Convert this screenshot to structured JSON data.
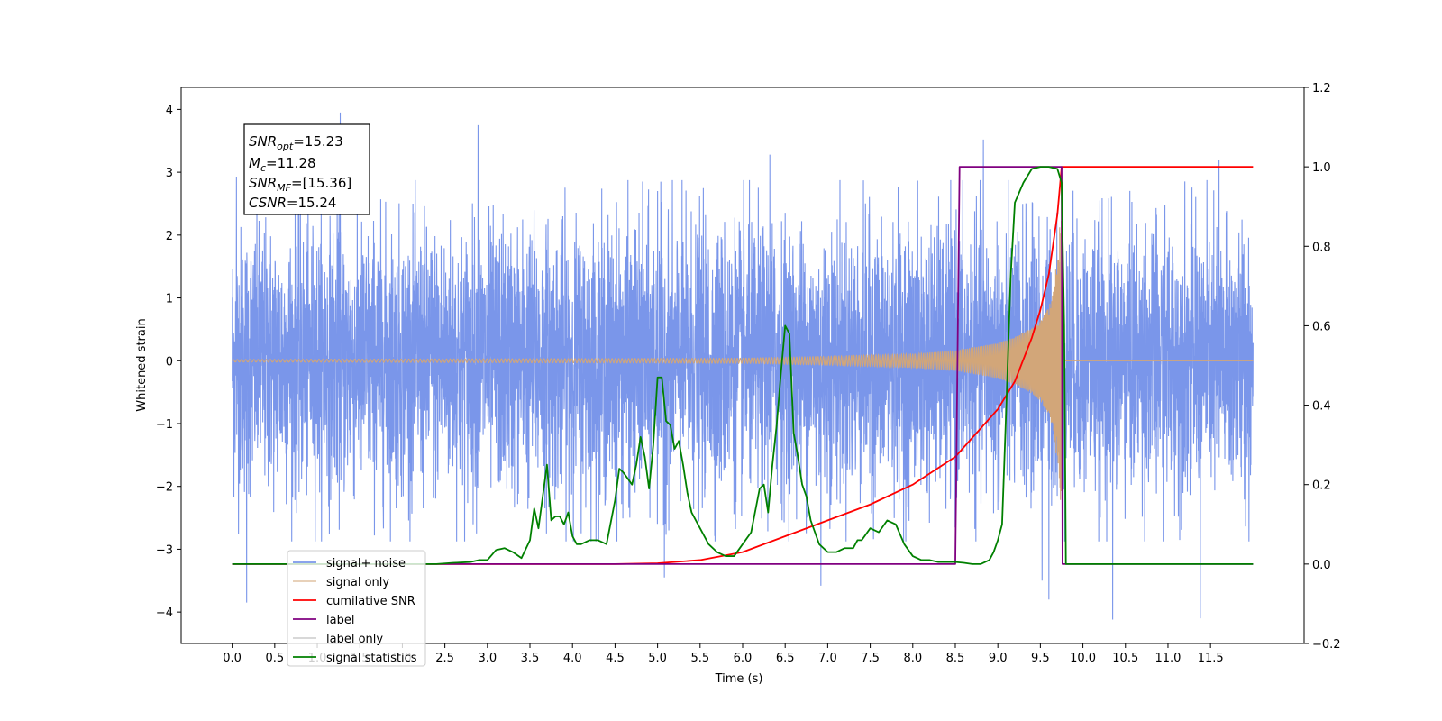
{
  "chart_data": {
    "type": "line",
    "xlabel": "Time (s)",
    "ylabel_left": "Whitened strain",
    "ylabel_right": "",
    "xlim": [
      -0.6,
      12.6
    ],
    "ylim_left": [
      -4.5,
      4.35
    ],
    "ylim_right": [
      -0.2,
      1.2
    ],
    "x_ticks": [
      0.0,
      0.5,
      1.0,
      1.5,
      2.0,
      2.5,
      3.0,
      3.5,
      4.0,
      4.5,
      5.0,
      5.5,
      6.0,
      6.5,
      7.0,
      7.5,
      8.0,
      8.5,
      9.0,
      9.5,
      10.0,
      10.5,
      11.0,
      11.5
    ],
    "x_tick_labels": [
      "0.0",
      "0.5",
      "1.0",
      "1.5",
      "2.0",
      "2.5",
      "3.0",
      "3.5",
      "4.0",
      "4.5",
      "5.0",
      "5.5",
      "6.0",
      "6.5",
      "7.0",
      "7.5",
      "8.0",
      "8.5",
      "9.0",
      "9.5",
      "10.0",
      "10.5",
      "11.0",
      "11.5"
    ],
    "y_left_ticks": [
      -4,
      -3,
      -2,
      -1,
      0,
      1,
      2,
      3,
      4
    ],
    "y_left_tick_labels": [
      "−4",
      "−3",
      "−2",
      "−1",
      "0",
      "1",
      "2",
      "3",
      "4"
    ],
    "y_right_ticks": [
      -0.2,
      0.0,
      0.2,
      0.4,
      0.6,
      0.8,
      1.0,
      1.2
    ],
    "y_right_tick_labels": [
      "−0.2",
      "0.0",
      "0.2",
      "0.4",
      "0.6",
      "0.8",
      "1.0",
      "1.2"
    ],
    "grid": false,
    "legend_placement": "lower-left",
    "annotation_box": {
      "lines": [
        {
          "main": "SNR",
          "sub": "opt",
          "rest": "=15.23"
        },
        {
          "main": "M",
          "sub": "c",
          "rest": "=11.28"
        },
        {
          "main": "SNR",
          "sub": "MF",
          "rest": "=[15.36]"
        },
        {
          "main": "CSNR",
          "sub": "",
          "rest": "=15.24"
        }
      ]
    },
    "series": [
      {
        "name": "signal+ noise",
        "axis": "left",
        "color": "#4169e1",
        "style": "dense noise",
        "x_range": [
          0.0,
          12.0
        ],
        "envelope_upper": 2.5,
        "envelope_lower": -2.5,
        "peaks": [
          {
            "x": 1.27,
            "y": 3.95
          },
          {
            "x": 0.05,
            "y": 2.93
          },
          {
            "x": 0.17,
            "y": -3.85
          },
          {
            "x": 2.89,
            "y": 3.75
          },
          {
            "x": 5.0,
            "y": 2.7
          },
          {
            "x": 5.08,
            "y": -3.45
          },
          {
            "x": 6.32,
            "y": 3.28
          },
          {
            "x": 6.92,
            "y": -3.58
          },
          {
            "x": 8.83,
            "y": 3.52
          },
          {
            "x": 9.52,
            "y": -3.5
          },
          {
            "x": 9.6,
            "y": -3.8
          },
          {
            "x": 10.35,
            "y": -4.12
          },
          {
            "x": 11.38,
            "y": -4.1
          },
          {
            "x": 11.6,
            "y": 3.2
          }
        ]
      },
      {
        "name": "signal only",
        "axis": "left",
        "color": "#d2a679",
        "style": "chirp",
        "x": [
          0.0,
          6.0,
          7.0,
          8.0,
          8.5,
          9.0,
          9.2,
          9.4,
          9.5,
          9.6,
          9.65,
          9.7,
          9.75,
          9.76
        ],
        "amplitude": [
          0.02,
          0.04,
          0.07,
          0.11,
          0.16,
          0.28,
          0.38,
          0.52,
          0.64,
          0.85,
          1.1,
          1.7,
          2.5,
          0.0
        ]
      },
      {
        "name": "cumilative SNR",
        "axis": "right",
        "color": "#ff0000",
        "x": [
          0.0,
          4.0,
          4.5,
          5.0,
          5.5,
          6.0,
          6.5,
          7.0,
          7.5,
          8.0,
          8.5,
          9.0,
          9.2,
          9.4,
          9.5,
          9.6,
          9.7,
          9.75,
          9.76,
          12.0
        ],
        "y": [
          0.0,
          0.0,
          0.0,
          0.002,
          0.01,
          0.03,
          0.07,
          0.11,
          0.15,
          0.2,
          0.27,
          0.39,
          0.46,
          0.57,
          0.64,
          0.73,
          0.88,
          1.0,
          1.0,
          1.0
        ]
      },
      {
        "name": "label",
        "axis": "right",
        "color": "#800080",
        "x": [
          0.0,
          8.5,
          8.55,
          9.75,
          9.76,
          12.0
        ],
        "y": [
          0.0,
          0.0,
          1.0,
          1.0,
          0.0,
          0.0
        ]
      },
      {
        "name": "label only",
        "axis": "right",
        "color": "#d3d3d3",
        "x": [],
        "y": []
      },
      {
        "name": "signal statistics",
        "axis": "right",
        "color": "#008000",
        "x": [
          0.0,
          2.4,
          2.6,
          2.8,
          2.9,
          3.0,
          3.1,
          3.2,
          3.3,
          3.4,
          3.5,
          3.55,
          3.6,
          3.65,
          3.7,
          3.75,
          3.8,
          3.85,
          3.9,
          3.95,
          4.0,
          4.05,
          4.1,
          4.2,
          4.3,
          4.4,
          4.5,
          4.55,
          4.6,
          4.7,
          4.75,
          4.8,
          4.85,
          4.9,
          4.95,
          5.0,
          5.05,
          5.1,
          5.15,
          5.2,
          5.25,
          5.3,
          5.35,
          5.4,
          5.5,
          5.6,
          5.7,
          5.8,
          5.9,
          6.0,
          6.1,
          6.2,
          6.25,
          6.3,
          6.35,
          6.4,
          6.45,
          6.5,
          6.55,
          6.6,
          6.65,
          6.7,
          6.75,
          6.8,
          6.9,
          7.0,
          7.1,
          7.2,
          7.3,
          7.35,
          7.4,
          7.5,
          7.6,
          7.7,
          7.8,
          7.9,
          8.0,
          8.1,
          8.2,
          8.3,
          8.4,
          8.5,
          8.6,
          8.7,
          8.8,
          8.9,
          8.95,
          9.0,
          9.05,
          9.1,
          9.15,
          9.2,
          9.3,
          9.4,
          9.5,
          9.6,
          9.7,
          9.75,
          9.78,
          9.8,
          12.0
        ],
        "y": [
          0.0,
          0.0,
          0.003,
          0.005,
          0.01,
          0.01,
          0.035,
          0.04,
          0.03,
          0.015,
          0.06,
          0.14,
          0.09,
          0.17,
          0.25,
          0.11,
          0.12,
          0.12,
          0.1,
          0.13,
          0.07,
          0.05,
          0.05,
          0.06,
          0.06,
          0.05,
          0.16,
          0.24,
          0.23,
          0.2,
          0.25,
          0.32,
          0.27,
          0.19,
          0.3,
          0.47,
          0.47,
          0.36,
          0.35,
          0.29,
          0.31,
          0.25,
          0.18,
          0.13,
          0.09,
          0.05,
          0.03,
          0.02,
          0.02,
          0.05,
          0.08,
          0.19,
          0.2,
          0.13,
          0.25,
          0.35,
          0.48,
          0.6,
          0.58,
          0.33,
          0.27,
          0.2,
          0.17,
          0.11,
          0.05,
          0.03,
          0.03,
          0.04,
          0.04,
          0.06,
          0.06,
          0.09,
          0.08,
          0.11,
          0.1,
          0.05,
          0.02,
          0.01,
          0.01,
          0.005,
          0.005,
          0.005,
          0.003,
          0.0,
          0.0,
          0.01,
          0.03,
          0.06,
          0.1,
          0.4,
          0.72,
          0.91,
          0.96,
          0.995,
          1.0,
          1.0,
          0.995,
          0.96,
          0.6,
          0.0,
          0.0
        ]
      }
    ]
  }
}
